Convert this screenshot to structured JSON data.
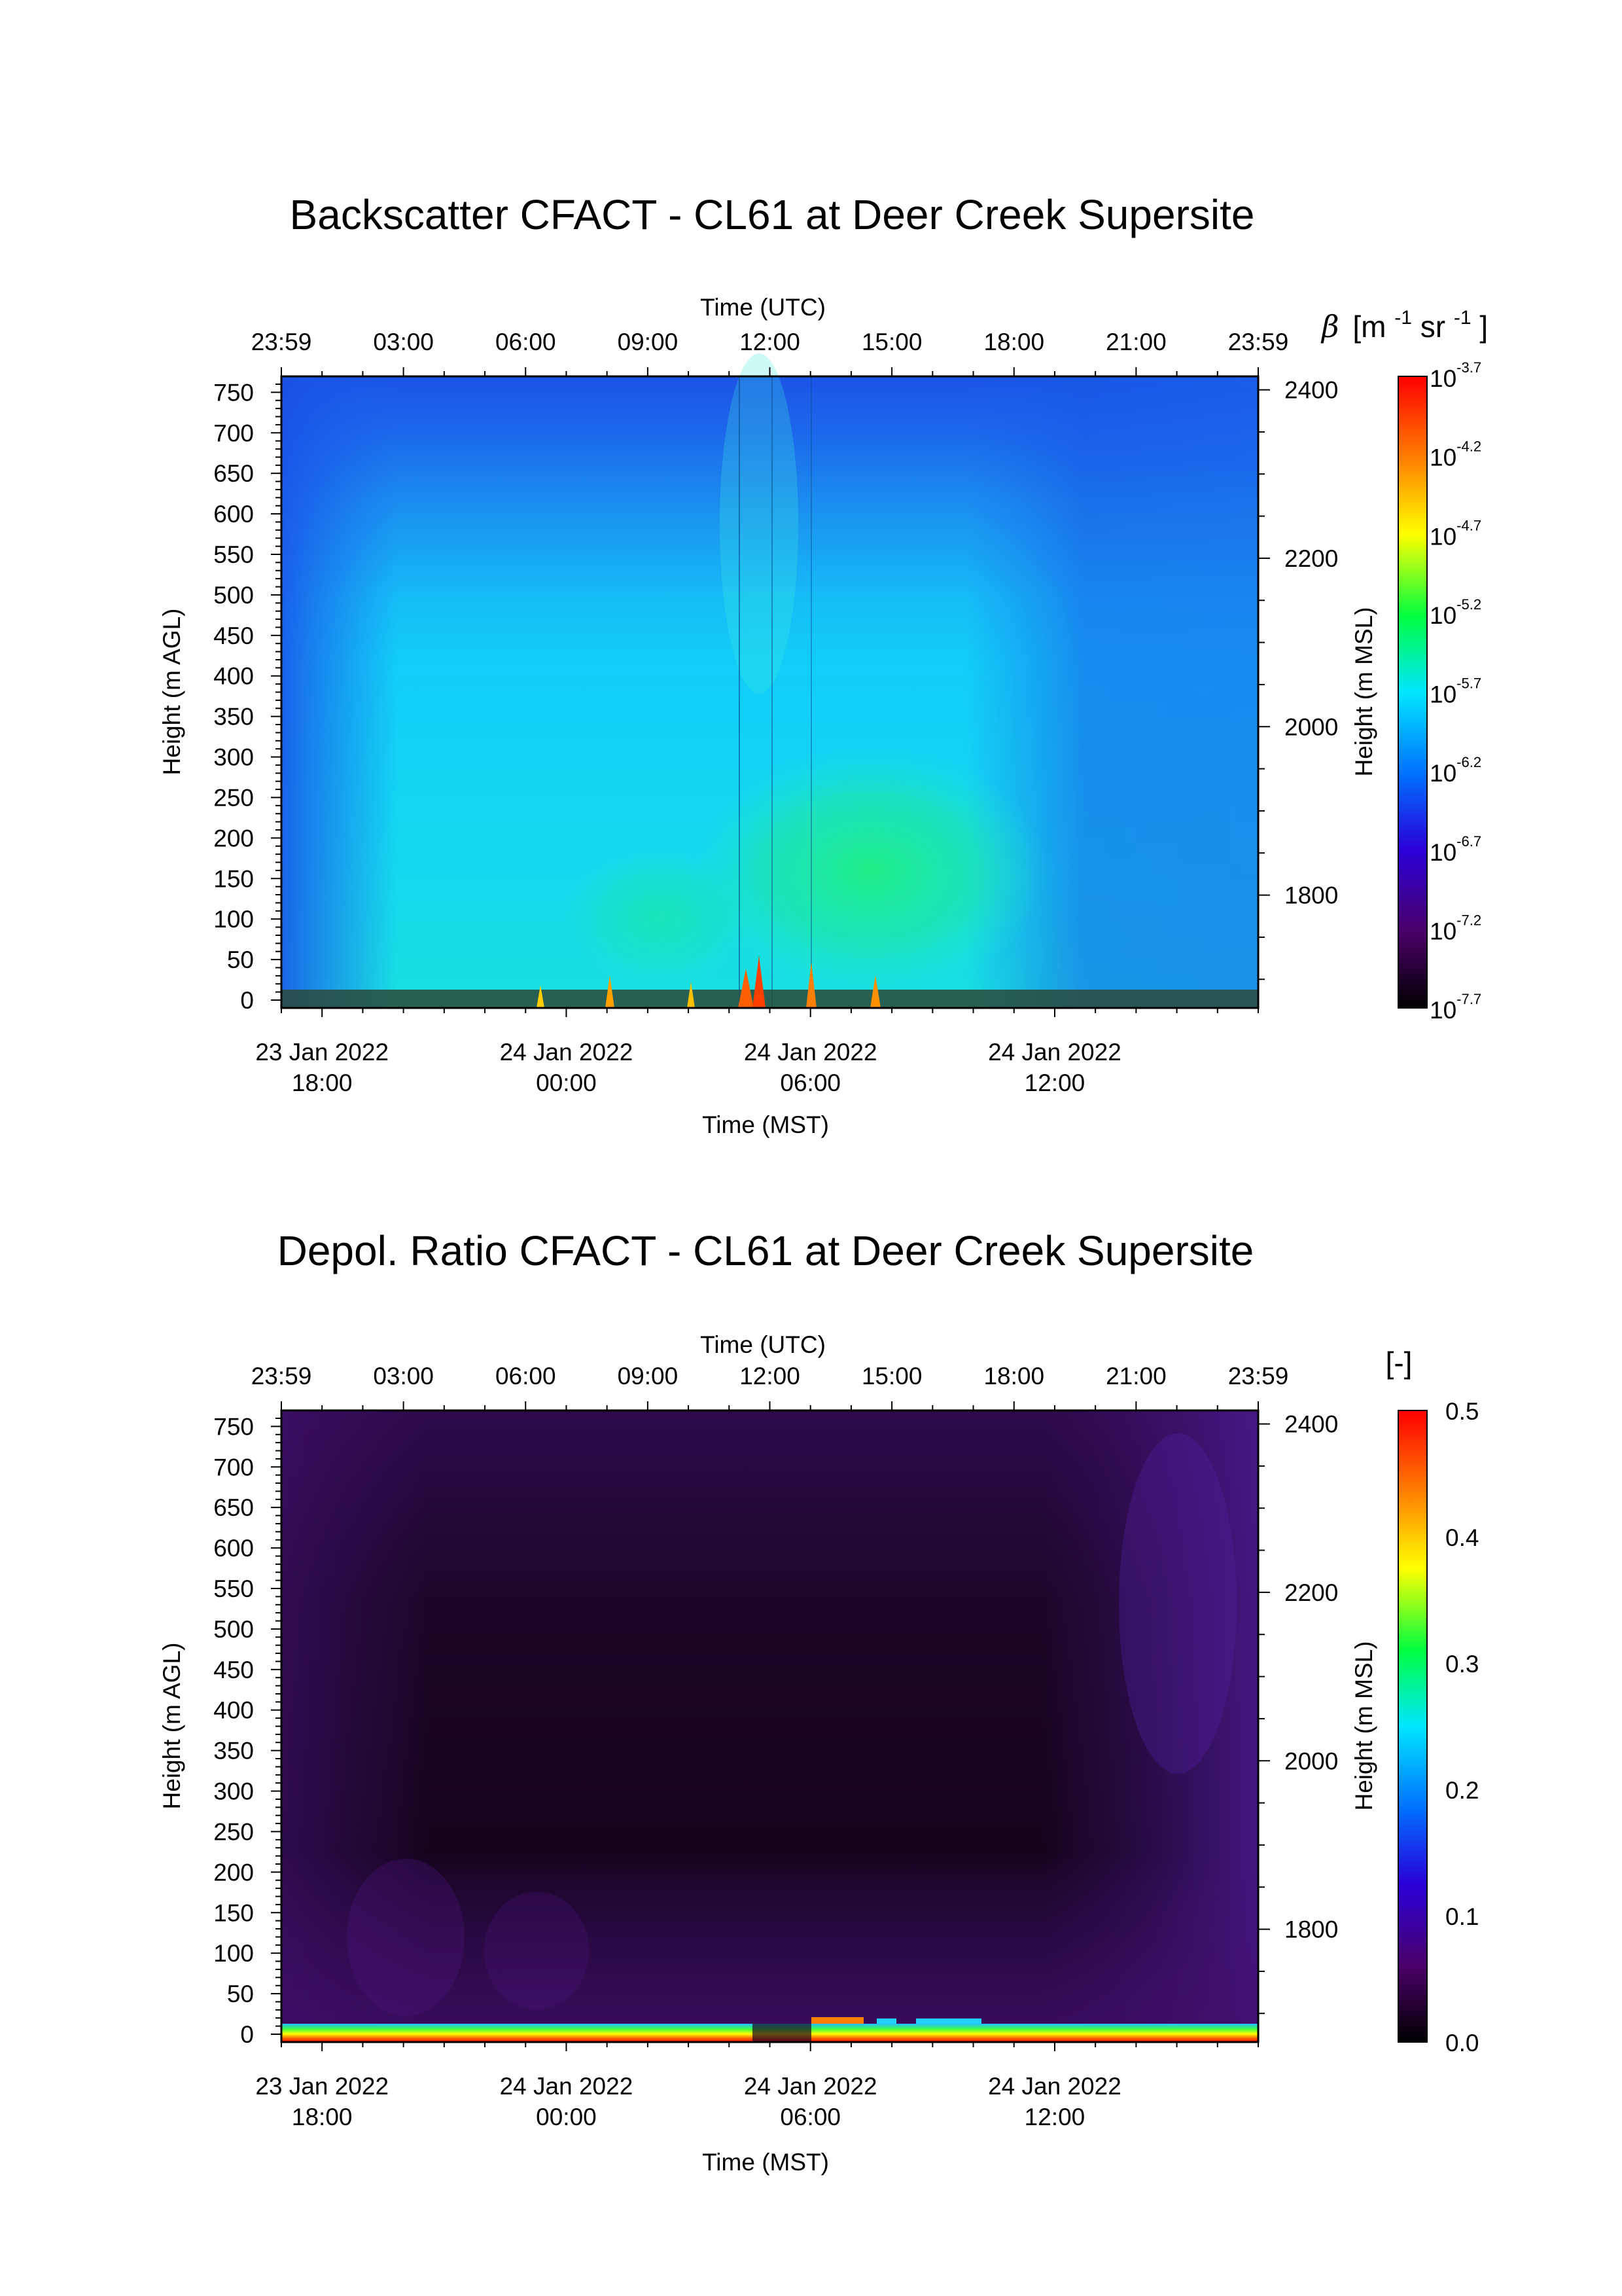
{
  "chart_data": [
    {
      "type": "heatmap",
      "title": "Backscatter CFACT - CL61 at Deer Creek Supersite",
      "x_top_label": "Time (UTC)",
      "x_top_ticks": [
        "23:59",
        "03:00",
        "06:00",
        "09:00",
        "12:00",
        "15:00",
        "18:00",
        "21:00",
        "23:59"
      ],
      "x_bottom_label": "Time (MST)",
      "x_bottom_ticks": [
        {
          "date": "23 Jan 2022",
          "time": "18:00"
        },
        {
          "date": "24 Jan 2022",
          "time": "00:00"
        },
        {
          "date": "24 Jan 2022",
          "time": "06:00"
        },
        {
          "date": "24 Jan 2022",
          "time": "12:00"
        }
      ],
      "ylabel_left": "Height (m AGL)",
      "y_left_ticks": [
        "0",
        "50",
        "100",
        "150",
        "200",
        "250",
        "300",
        "350",
        "400",
        "450",
        "500",
        "550",
        "600",
        "650",
        "700",
        "750"
      ],
      "ylabel_right": "Height (m MSL)",
      "y_right_ticks": [
        "1800",
        "2000",
        "2200",
        "2400"
      ],
      "colorbar": {
        "label_symbol": "β",
        "label_unit_parts": [
          "[m",
          "-1",
          " sr",
          "-1",
          "]"
        ],
        "scale": "log",
        "base": "10",
        "exponents": [
          "-3.7",
          "-4.2",
          "-4.7",
          "-5.2",
          "-5.7",
          "-6.2",
          "-6.7",
          "-7.2",
          "-7.7"
        ]
      },
      "colormap": [
        "#000000",
        "#5a0070",
        "#2a00d8",
        "#0070ff",
        "#00e6ff",
        "#00ff40",
        "#ffff00",
        "#ff8000",
        "#ff0000"
      ]
    },
    {
      "type": "heatmap",
      "title": "Depol. Ratio CFACT - CL61 at Deer Creek Supersite",
      "x_top_label": "Time (UTC)",
      "x_top_ticks": [
        "23:59",
        "03:00",
        "06:00",
        "09:00",
        "12:00",
        "15:00",
        "18:00",
        "21:00",
        "23:59"
      ],
      "x_bottom_label": "Time (MST)",
      "x_bottom_ticks": [
        {
          "date": "23 Jan 2022",
          "time": "18:00"
        },
        {
          "date": "24 Jan 2022",
          "time": "00:00"
        },
        {
          "date": "24 Jan 2022",
          "time": "06:00"
        },
        {
          "date": "24 Jan 2022",
          "time": "12:00"
        }
      ],
      "ylabel_left": "Height (m AGL)",
      "y_left_ticks": [
        "0",
        "50",
        "100",
        "150",
        "200",
        "250",
        "300",
        "350",
        "400",
        "450",
        "500",
        "550",
        "600",
        "650",
        "700",
        "750"
      ],
      "ylabel_right": "Height (m MSL)",
      "y_right_ticks": [
        "1800",
        "2000",
        "2200",
        "2400"
      ],
      "colorbar": {
        "label": "[-]",
        "scale": "linear",
        "ticks": [
          "0.5",
          "0.4",
          "0.3",
          "0.2",
          "0.1",
          "0.0"
        ]
      },
      "colormap": [
        "#000000",
        "#5a0070",
        "#2a00d8",
        "#0070ff",
        "#00e6ff",
        "#00ff40",
        "#ffff00",
        "#ff8000",
        "#ff0000"
      ]
    }
  ]
}
